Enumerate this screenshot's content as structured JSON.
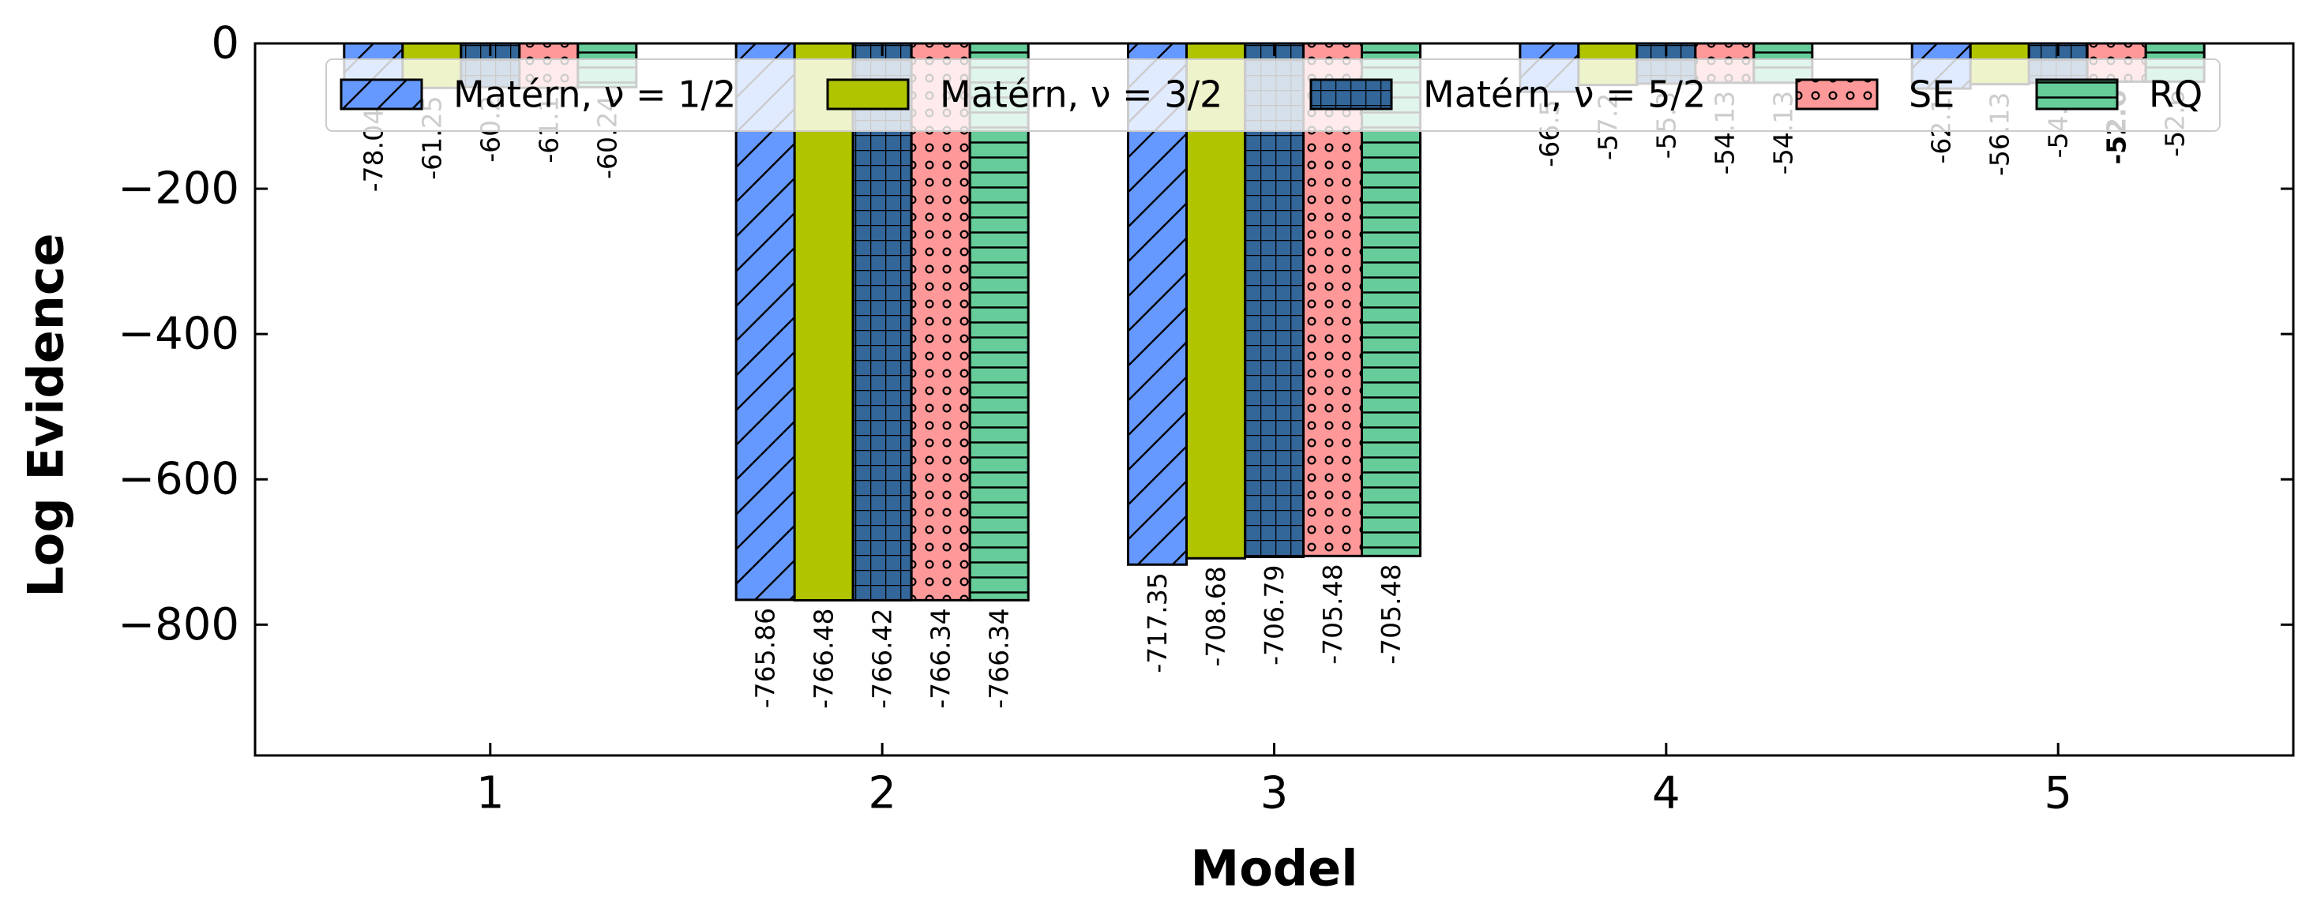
{
  "chart_data": {
    "type": "bar",
    "xlabel": "Model",
    "ylabel": "Log Evidence",
    "categories": [
      "1",
      "2",
      "3",
      "4",
      "5"
    ],
    "ylim": [
      -980,
      0
    ],
    "yticks": [
      0,
      -200,
      -400,
      -600,
      -800
    ],
    "ytick_labels": [
      "0",
      "−200",
      "−400",
      "−600",
      "−800"
    ],
    "grid": false,
    "legend_position": "top",
    "series": [
      {
        "name": "Matérn, ν = 1/2",
        "color": "#6699ff",
        "pattern": "diagonal-hatch",
        "values": [
          -78.04,
          -765.86,
          -717.35,
          -66.5,
          -62.1
        ],
        "labels": [
          "-78.04",
          "-765.86",
          "-717.35",
          "-66.5",
          "-62.1"
        ]
      },
      {
        "name": "Matérn, ν = 3/2",
        "color": "#b0c400",
        "pattern": "solid",
        "values": [
          -61.25,
          -766.48,
          -708.68,
          -57.2,
          -56.13
        ],
        "labels": [
          "-61.25",
          "-766.48",
          "-708.68",
          "-57.2",
          "-56.13"
        ]
      },
      {
        "name": "Matérn, ν = 5/2",
        "color": "#336699",
        "pattern": "grid-hatch",
        "values": [
          -60.2,
          -766.42,
          -706.79,
          -55.3,
          -54.3
        ],
        "labels": [
          "-60.2",
          "-766.42",
          "-706.79",
          "-55.3",
          "-54.3"
        ]
      },
      {
        "name": "SE",
        "color": "#ff9999",
        "pattern": "dots",
        "values": [
          -61.1,
          -766.34,
          -705.48,
          -54.13,
          -52.6
        ],
        "labels": [
          "-61.1",
          "-766.34",
          "-705.48",
          "-54.13",
          "-52.6"
        ]
      },
      {
        "name": "RQ",
        "color": "#66cc99",
        "pattern": "horizontal-hatch",
        "values": [
          -60.24,
          -766.34,
          -705.48,
          -54.13,
          -52.6
        ],
        "labels": [
          "-60.24",
          "-766.34",
          "-705.48",
          "-54.13",
          "-52.6"
        ]
      }
    ],
    "highlight": {
      "series": 3,
      "category": 4
    }
  }
}
